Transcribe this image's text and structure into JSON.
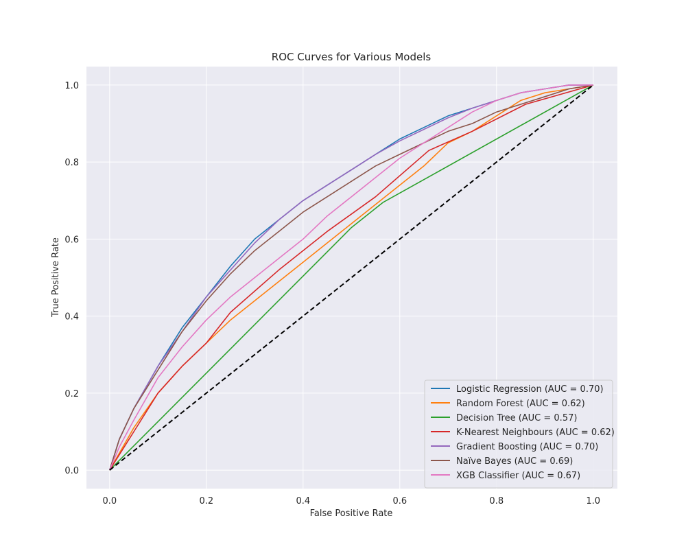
{
  "chart_data": {
    "type": "line",
    "title": "ROC Curves for Various Models",
    "xlabel": "False Positive Rate",
    "ylabel": "True Positive Rate",
    "xlim": [
      -0.048,
      1.05
    ],
    "ylim": [
      -0.048,
      1.048
    ],
    "xticks": [
      "0.0",
      "0.2",
      "0.4",
      "0.6",
      "0.8",
      "1.0"
    ],
    "yticks": [
      "0.0",
      "0.2",
      "0.4",
      "0.6",
      "0.8",
      "1.0"
    ],
    "grid": true,
    "background": "#eaeaf2",
    "legend_position": "lower right",
    "series": [
      {
        "name": "Logistic Regression (AUC = 0.70)",
        "color": "#1f77b4",
        "x": [
          0,
          0.02,
          0.05,
          0.1,
          0.15,
          0.2,
          0.25,
          0.3,
          0.35,
          0.4,
          0.45,
          0.5,
          0.55,
          0.6,
          0.65,
          0.7,
          0.75,
          0.8,
          0.85,
          0.9,
          0.95,
          1.0
        ],
        "y": [
          0,
          0.08,
          0.16,
          0.27,
          0.37,
          0.45,
          0.53,
          0.6,
          0.65,
          0.7,
          0.74,
          0.78,
          0.82,
          0.86,
          0.89,
          0.92,
          0.94,
          0.96,
          0.98,
          0.99,
          1.0,
          1.0
        ]
      },
      {
        "name": "Random Forest (AUC = 0.62)",
        "color": "#ff7f0e",
        "x": [
          0,
          0.05,
          0.1,
          0.15,
          0.2,
          0.25,
          0.3,
          0.35,
          0.4,
          0.45,
          0.5,
          0.55,
          0.6,
          0.65,
          0.7,
          0.75,
          0.8,
          0.85,
          0.9,
          0.95,
          1.0
        ],
        "y": [
          0,
          0.11,
          0.2,
          0.27,
          0.33,
          0.39,
          0.44,
          0.49,
          0.54,
          0.59,
          0.64,
          0.69,
          0.74,
          0.79,
          0.85,
          0.88,
          0.92,
          0.96,
          0.98,
          0.99,
          1.0
        ]
      },
      {
        "name": "Decision Tree (AUC = 0.57)",
        "color": "#2ca02c",
        "x": [
          0,
          0.5,
          0.565,
          1.0
        ],
        "y": [
          0,
          0.63,
          0.695,
          1.0
        ]
      },
      {
        "name": "K-Nearest Neighbours (AUC = 0.62)",
        "color": "#d62728",
        "x": [
          0,
          0.05,
          0.1,
          0.15,
          0.2,
          0.25,
          0.35,
          0.45,
          0.55,
          0.66,
          0.75,
          0.86,
          1.0
        ],
        "y": [
          0,
          0.1,
          0.2,
          0.27,
          0.33,
          0.41,
          0.52,
          0.62,
          0.71,
          0.83,
          0.88,
          0.95,
          1.0
        ]
      },
      {
        "name": "Gradient Boosting (AUC = 0.70)",
        "color": "#9467bd",
        "x": [
          0,
          0.02,
          0.05,
          0.1,
          0.15,
          0.2,
          0.25,
          0.3,
          0.35,
          0.4,
          0.45,
          0.5,
          0.55,
          0.6,
          0.65,
          0.7,
          0.75,
          0.8,
          0.85,
          0.9,
          0.95,
          1.0
        ],
        "y": [
          0,
          0.08,
          0.16,
          0.27,
          0.36,
          0.45,
          0.52,
          0.59,
          0.65,
          0.7,
          0.74,
          0.78,
          0.82,
          0.855,
          0.885,
          0.915,
          0.94,
          0.96,
          0.98,
          0.99,
          1.0,
          1.0
        ]
      },
      {
        "name": "Naïve Bayes (AUC = 0.69)",
        "color": "#8c564b",
        "x": [
          0,
          0.02,
          0.05,
          0.1,
          0.15,
          0.2,
          0.25,
          0.3,
          0.35,
          0.4,
          0.45,
          0.5,
          0.55,
          0.6,
          0.65,
          0.7,
          0.75,
          0.8,
          0.85,
          0.9,
          0.95,
          1.0
        ],
        "y": [
          0,
          0.08,
          0.16,
          0.26,
          0.36,
          0.44,
          0.51,
          0.57,
          0.62,
          0.67,
          0.71,
          0.75,
          0.79,
          0.82,
          0.85,
          0.88,
          0.9,
          0.93,
          0.95,
          0.97,
          0.99,
          1.0
        ]
      },
      {
        "name": "XGB Classifier (AUC = 0.67)",
        "color": "#e377c2",
        "x": [
          0,
          0.02,
          0.05,
          0.1,
          0.15,
          0.2,
          0.25,
          0.3,
          0.35,
          0.4,
          0.45,
          0.5,
          0.55,
          0.6,
          0.65,
          0.7,
          0.75,
          0.8,
          0.85,
          0.9,
          0.95,
          1.0
        ],
        "y": [
          0,
          0.06,
          0.13,
          0.24,
          0.32,
          0.39,
          0.45,
          0.5,
          0.55,
          0.6,
          0.66,
          0.71,
          0.76,
          0.81,
          0.85,
          0.89,
          0.93,
          0.96,
          0.98,
          0.99,
          1.0,
          1.0
        ]
      }
    ],
    "reference_line": {
      "color": "#000000",
      "style": "dashed",
      "x": [
        0,
        1
      ],
      "y": [
        0,
        1
      ]
    }
  }
}
